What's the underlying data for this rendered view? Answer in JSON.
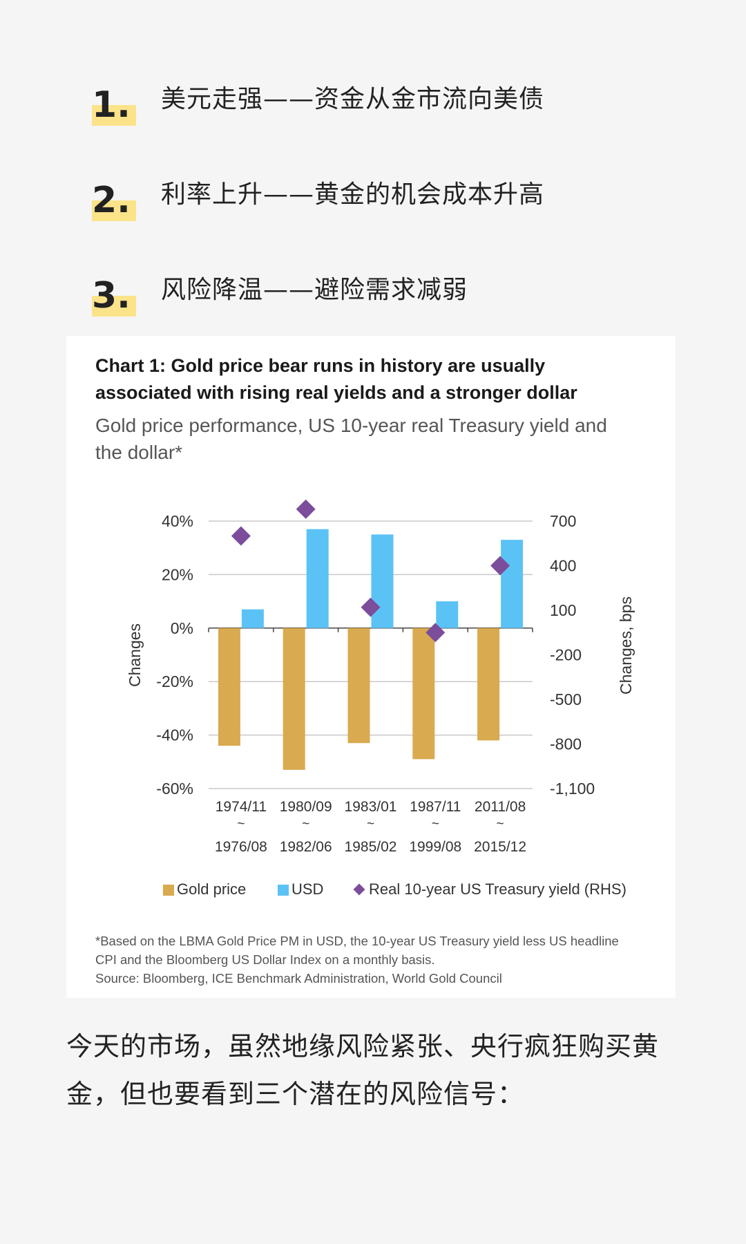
{
  "list": [
    {
      "number": "1.",
      "text": "美元走强——资金从金市流向美债"
    },
    {
      "number": "2.",
      "text": "利率上升——黄金的机会成本升高"
    },
    {
      "number": "3.",
      "text": "风险降温——避险需求减弱"
    }
  ],
  "chart_data": {
    "type": "bar",
    "title": "Chart 1: Gold price bear runs in history are usually associated with rising real yields and a stronger dollar",
    "title_lines": [
      "Chart 1: Gold price bear runs in history are usually",
      "associated with rising real yields and a stronger dollar"
    ],
    "subtitle": "Gold price performance, US 10-year real Treasury yield and the dollar*",
    "subtitle_lines": [
      "Gold price performance, US 10-year real Treasury yield and",
      "the dollar*"
    ],
    "categories": [
      {
        "start": "1974/11",
        "sep": "~",
        "end": "1976/08"
      },
      {
        "start": "1980/09",
        "sep": "~",
        "end": "1982/06"
      },
      {
        "start": "1983/01",
        "sep": "~",
        "end": "1985/02"
      },
      {
        "start": "1987/11",
        "sep": "~",
        "end": "1999/08"
      },
      {
        "start": "2011/08",
        "sep": "~",
        "end": "2015/12"
      }
    ],
    "series": [
      {
        "name": "Gold price",
        "type": "bar",
        "axis": "left",
        "color": "#d9aa4f",
        "values": [
          -44,
          -53,
          -43,
          -49,
          -42
        ]
      },
      {
        "name": "USD",
        "type": "bar",
        "axis": "left",
        "color": "#5bc2f5",
        "values": [
          7,
          37,
          35,
          10,
          33
        ]
      },
      {
        "name": "Real 10-year US Treasury yield (RHS)",
        "type": "scatter",
        "marker": "diamond",
        "axis": "right",
        "color": "#7b4d9a",
        "values": [
          600,
          780,
          120,
          -50,
          400
        ]
      }
    ],
    "ylabel": "Changes",
    "y2label": "Changes, bps",
    "ylim": [
      -60,
      40
    ],
    "y2lim": [
      -1100,
      700
    ],
    "yticks": [
      40,
      20,
      0,
      -20,
      -40,
      -60
    ],
    "ytick_labels": [
      "40%",
      "20%",
      "0%",
      "-20%",
      "-40%",
      "-60%"
    ],
    "y2ticks": [
      700,
      400,
      100,
      -200,
      -500,
      -800,
      -1100
    ],
    "y2tick_labels": [
      "700",
      "400",
      "100",
      "-200",
      "-500",
      "-800",
      "-1,100"
    ],
    "legend_position": "bottom",
    "footnote": [
      "*Based on the LBMA Gold Price PM in USD, the 10-year US Treasury yield less US headline",
      "CPI and the Bloomberg US Dollar Index on a monthly basis.",
      "Source: Bloomberg, ICE Benchmark Administration, World Gold Council"
    ]
  },
  "paragraph_lines": [
    "今天的市场，虽然地缘风险紧张、央行疯狂购买黄",
    "金，但也要看到三个潜在的风险信号："
  ]
}
